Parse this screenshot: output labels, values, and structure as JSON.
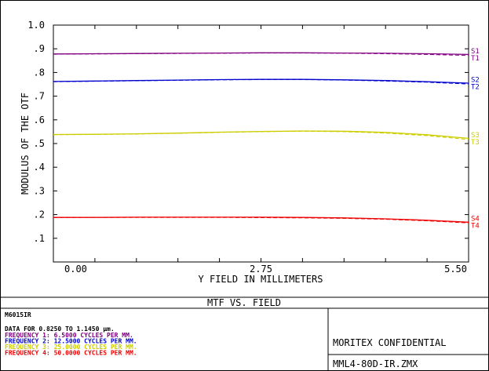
{
  "chart_data": {
    "type": "line",
    "title": "MTF VS. FIELD",
    "xlabel": "Y FIELD IN MILLIMETERS",
    "ylabel": "MODULUS OF THE OTF",
    "xlim": [
      0,
      5.5
    ],
    "ylim": [
      0,
      1.0
    ],
    "x_tick_labels": [
      "0.00",
      "2.75",
      "5.50"
    ],
    "y_tick_labels": [
      ".1",
      ".2",
      ".3",
      ".4",
      ".5",
      ".6",
      ".7",
      ".8",
      ".9",
      "1.0"
    ],
    "x": [
      0,
      0.55,
      1.1,
      1.65,
      2.2,
      2.75,
      3.3,
      3.85,
      4.4,
      4.95,
      5.5
    ],
    "series": [
      {
        "name": "S1",
        "color": "#800080",
        "dash": "solid",
        "values": [
          0.878,
          0.879,
          0.88,
          0.881,
          0.882,
          0.883,
          0.883,
          0.882,
          0.881,
          0.879,
          0.876
        ]
      },
      {
        "name": "T1",
        "color": "#800080",
        "dash": "dashed",
        "values": [
          0.877,
          0.878,
          0.879,
          0.88,
          0.881,
          0.882,
          0.882,
          0.881,
          0.879,
          0.876,
          0.872
        ]
      },
      {
        "name": "S2",
        "color": "#0000cc",
        "dash": "solid",
        "values": [
          0.762,
          0.764,
          0.766,
          0.768,
          0.77,
          0.771,
          0.771,
          0.769,
          0.766,
          0.761,
          0.755
        ]
      },
      {
        "name": "T2",
        "color": "#0000cc",
        "dash": "dashed",
        "values": [
          0.761,
          0.763,
          0.765,
          0.767,
          0.769,
          0.77,
          0.77,
          0.768,
          0.764,
          0.759,
          0.751
        ]
      },
      {
        "name": "S3",
        "color": "#cccc00",
        "dash": "solid",
        "values": [
          0.538,
          0.539,
          0.541,
          0.544,
          0.548,
          0.551,
          0.553,
          0.552,
          0.547,
          0.537,
          0.522
        ]
      },
      {
        "name": "T3",
        "color": "#cccc00",
        "dash": "dashed",
        "values": [
          0.537,
          0.538,
          0.54,
          0.543,
          0.547,
          0.55,
          0.552,
          0.55,
          0.544,
          0.533,
          0.517
        ]
      },
      {
        "name": "S4",
        "color": "#ee0000",
        "dash": "solid",
        "values": [
          0.188,
          0.188,
          0.189,
          0.189,
          0.189,
          0.189,
          0.188,
          0.186,
          0.182,
          0.176,
          0.168
        ]
      },
      {
        "name": "T4",
        "color": "#ee0000",
        "dash": "dashed",
        "values": [
          0.187,
          0.188,
          0.188,
          0.188,
          0.188,
          0.187,
          0.186,
          0.184,
          0.18,
          0.174,
          0.165
        ]
      }
    ],
    "legend_pairs": [
      {
        "top": "S1",
        "bottom": "T1",
        "color": "#800080"
      },
      {
        "top": "S2",
        "bottom": "T2",
        "color": "#0000cc"
      },
      {
        "top": "S3",
        "bottom": "T3",
        "color": "#cccc00"
      },
      {
        "top": "S4",
        "bottom": "T4",
        "color": "#ee0000"
      }
    ],
    "grid": false,
    "legend_placement": "right-end-of-curves"
  },
  "info_box": {
    "lens_name": "M6015IR",
    "data_range": "DATA FOR 0.8250 TO 1.1450 µm.",
    "frequencies": [
      {
        "text": "FREQUENCY 1:    6.5000  CYCLES PER MM.",
        "color": "#800080"
      },
      {
        "text": "FREQUENCY 2:   12.5000  CYCLES PER MM.",
        "color": "#0000cc"
      },
      {
        "text": "FREQUENCY 3:   25.0000  CYCLES PER MM.",
        "color": "#cccc00"
      },
      {
        "text": "FREQUENCY 4:   50.0000  CYCLES PER MM.",
        "color": "#ee0000"
      }
    ],
    "company": "MORITEX CONFIDENTIAL",
    "file_name": "MML4-80D-IR.ZMX"
  }
}
